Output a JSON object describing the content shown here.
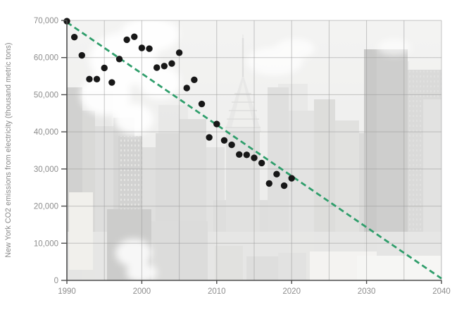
{
  "figure": {
    "background": "#ffffff",
    "accent_green": "#2f9e6b",
    "point_color": "#171717",
    "grid_color": "#9a9a9a",
    "axis_color": "#4d4d4d",
    "label_color": "#8d8d8d",
    "backdrop_description": "faded New York City skyline photo with Chrysler Building and steam plumes"
  },
  "chart_data": {
    "type": "scatter",
    "title": "",
    "xlabel": "",
    "ylabel": "New York CO2 emissions from electricity (thousand metric tons)",
    "xlim": [
      1990,
      2040
    ],
    "ylim": [
      0,
      70000
    ],
    "x_ticks": [
      1990,
      2000,
      2010,
      2020,
      2030,
      2040
    ],
    "y_ticks": [
      0,
      10000,
      20000,
      30000,
      40000,
      50000,
      60000,
      70000
    ],
    "y_tick_labels": [
      "0",
      "10,000",
      "20,000",
      "30,000",
      "40,000",
      "50,000",
      "60,000",
      "70,000"
    ],
    "grid": {
      "x_step_years": 5,
      "y_step": 10000,
      "legend": "none"
    },
    "series": [
      {
        "name": "New York CO2 emissions from electricity",
        "marker": "black-dot",
        "x": [
          1990,
          1991,
          1992,
          1993,
          1994,
          1995,
          1996,
          1997,
          1998,
          1999,
          2000,
          2001,
          2002,
          2003,
          2004,
          2005,
          2006,
          2007,
          2008,
          2009,
          2010,
          2011,
          2012,
          2013,
          2014,
          2015,
          2016,
          2017,
          2018,
          2019,
          2020
        ],
        "y": [
          69800,
          65500,
          60600,
          54200,
          54200,
          57200,
          53300,
          59600,
          64800,
          65600,
          62600,
          62400,
          57300,
          57700,
          58400,
          61300,
          51800,
          54000,
          47500,
          38500,
          42100,
          37700,
          36500,
          33900,
          33800,
          33000,
          31600,
          26100,
          28600,
          25500,
          27500
        ]
      }
    ],
    "trend": {
      "name": "linear trend to zero by 2040",
      "style": "dashed",
      "color": "#2f9e6b",
      "x": [
        1990,
        2040
      ],
      "y": [
        69500,
        500
      ]
    }
  }
}
